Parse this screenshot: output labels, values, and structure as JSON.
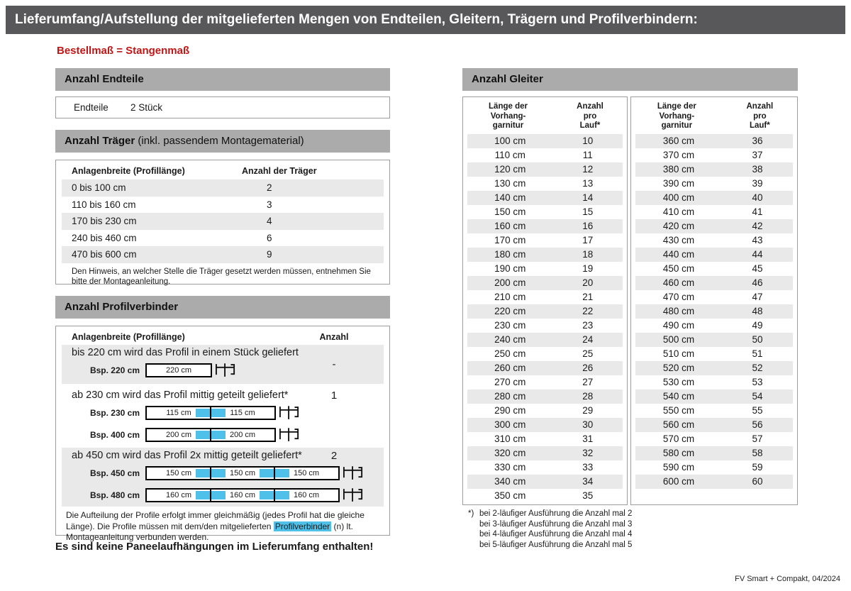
{
  "title": "Lieferumfang/Aufstellung der mitgelieferten Mengen von Endteilen, Gleitern, Trägern und Profilverbindern:",
  "subtitle": "Bestellmaß = Stangenmaß",
  "colors": {
    "title_bar": "#58585a",
    "section_bar": "#ababab",
    "row_stripe": "#e9e9e9",
    "accent_blue": "#4fc1e9",
    "accent_red": "#c01616",
    "box_border": "#9c9c9c"
  },
  "endteile": {
    "heading": "Anzahl Endteile",
    "label": "Endteile",
    "value": "2 Stück"
  },
  "traeger": {
    "heading": "Anzahl Träger",
    "heading_note": "(inkl. passendem Montagematerial)",
    "col1": "Anlagenbreite (Profillänge)",
    "col2": "Anzahl der Träger",
    "rows": [
      {
        "range": "0 bis 100 cm",
        "count": "2"
      },
      {
        "range": "110 bis 160 cm",
        "count": "3"
      },
      {
        "range": "170 bis 230 cm",
        "count": "4"
      },
      {
        "range": "240 bis 460 cm",
        "count": "6"
      },
      {
        "range": "470 bis 600 cm",
        "count": "9"
      }
    ],
    "note": "Den Hinweis, an welcher Stelle die Träger gesetzt werden müssen, entnehmen Sie bitte der Montageanleitung."
  },
  "profilverbinder": {
    "heading": "Anzahl Profilverbinder",
    "col1": "Anlagenbreite (Profillänge)",
    "col2": "Anzahl",
    "cases": [
      {
        "text": "bis 220 cm wird das Profil in einem Stück geliefert",
        "count": "-",
        "examples": [
          {
            "label": "Bsp. 220 cm",
            "segments": [
              "220 cm"
            ]
          }
        ]
      },
      {
        "text": "ab 230 cm wird das Profil mittig geteilt geliefert*",
        "count": "1",
        "examples": [
          {
            "label": "Bsp. 230 cm",
            "segments": [
              "115 cm",
              "115 cm"
            ]
          },
          {
            "label": "Bsp. 400 cm",
            "segments": [
              "200 cm",
              "200 cm"
            ]
          }
        ]
      },
      {
        "text": "ab 450 cm wird das Profil 2x mittig geteilt geliefert*",
        "count": "2",
        "examples": [
          {
            "label": "Bsp. 450 cm",
            "segments": [
              "150 cm",
              "150 cm",
              "150 cm"
            ]
          },
          {
            "label": "Bsp. 480 cm",
            "segments": [
              "160 cm",
              "160 cm",
              "160 cm"
            ]
          }
        ]
      }
    ],
    "note_before": "Die Aufteilung der Profile erfolgt immer gleichmäßig (jedes Profil hat die gleiche Länge). Die Profile müssen mit dem/den mitgelieferten ",
    "note_highlight": "Profilverbinder",
    "note_after": " (n) lt. Montageanleitung verbunden werden."
  },
  "gleiter": {
    "heading": "Anzahl Gleiter",
    "col1_lines": [
      "Länge der",
      "Vorhang-",
      "garnitur"
    ],
    "col2_lines": [
      "Anzahl",
      "pro",
      "Lauf*"
    ],
    "table_left": [
      [
        "100 cm",
        "10"
      ],
      [
        "110 cm",
        "11"
      ],
      [
        "120 cm",
        "12"
      ],
      [
        "130 cm",
        "13"
      ],
      [
        "140 cm",
        "14"
      ],
      [
        "150 cm",
        "15"
      ],
      [
        "160 cm",
        "16"
      ],
      [
        "170 cm",
        "17"
      ],
      [
        "180 cm",
        "18"
      ],
      [
        "190 cm",
        "19"
      ],
      [
        "200 cm",
        "20"
      ],
      [
        "210 cm",
        "21"
      ],
      [
        "220 cm",
        "22"
      ],
      [
        "230 cm",
        "23"
      ],
      [
        "240 cm",
        "24"
      ],
      [
        "250 cm",
        "25"
      ],
      [
        "260 cm",
        "26"
      ],
      [
        "270 cm",
        "27"
      ],
      [
        "280 cm",
        "28"
      ],
      [
        "290 cm",
        "29"
      ],
      [
        "300 cm",
        "30"
      ],
      [
        "310 cm",
        "31"
      ],
      [
        "320 cm",
        "32"
      ],
      [
        "330 cm",
        "33"
      ],
      [
        "340 cm",
        "34"
      ],
      [
        "350 cm",
        "35"
      ]
    ],
    "table_right": [
      [
        "360 cm",
        "36"
      ],
      [
        "370 cm",
        "37"
      ],
      [
        "380 cm",
        "38"
      ],
      [
        "390 cm",
        "39"
      ],
      [
        "400 cm",
        "40"
      ],
      [
        "410 cm",
        "41"
      ],
      [
        "420 cm",
        "42"
      ],
      [
        "430 cm",
        "43"
      ],
      [
        "440 cm",
        "44"
      ],
      [
        "450 cm",
        "45"
      ],
      [
        "460 cm",
        "46"
      ],
      [
        "470 cm",
        "47"
      ],
      [
        "480 cm",
        "48"
      ],
      [
        "490 cm",
        "49"
      ],
      [
        "500 cm",
        "50"
      ],
      [
        "510 cm",
        "51"
      ],
      [
        "520 cm",
        "52"
      ],
      [
        "530 cm",
        "53"
      ],
      [
        "540 cm",
        "54"
      ],
      [
        "550 cm",
        "55"
      ],
      [
        "560 cm",
        "56"
      ],
      [
        "570 cm",
        "57"
      ],
      [
        "580 cm",
        "58"
      ],
      [
        "590 cm",
        "59"
      ],
      [
        "600 cm",
        "60"
      ]
    ]
  },
  "footnotes": {
    "marker": "*)",
    "lines": [
      "bei 2-läufiger Ausführung die Anzahl mal 2",
      "bei 3-läufiger Ausführung die Anzahl mal 3",
      "bei 4-läufiger Ausführung die Anzahl mal 4",
      "bei 5-läufiger Ausführung die Anzahl mal 5"
    ]
  },
  "no_panels_note": "Es sind keine Paneelaufhängungen im Lieferumfang enthalten!",
  "footer": "FV Smart + Compakt, 04/2024"
}
